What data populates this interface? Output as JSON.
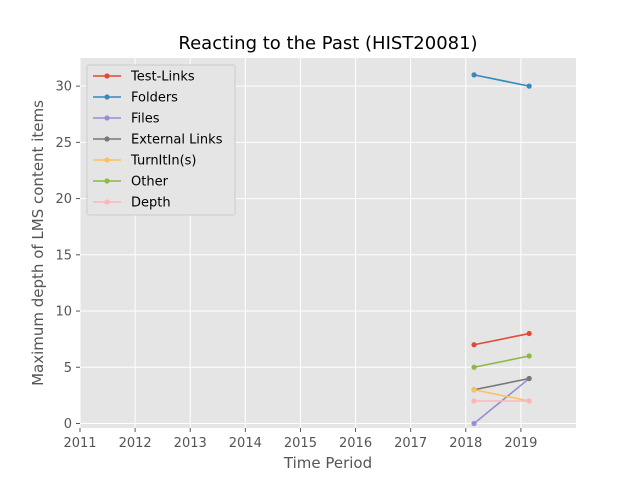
{
  "chart_data": {
    "type": "line",
    "title": "Reacting to the Past (HIST20081)",
    "xlabel": "Time Period",
    "ylabel": "Maximum depth of LMS content items",
    "xlim": [
      2011,
      2020
    ],
    "ylim": [
      -0.4,
      32.5
    ],
    "xticks": [
      "2011",
      "2012",
      "2013",
      "2014",
      "2015",
      "2016",
      "2017",
      "2018",
      "2019"
    ],
    "yticks": [
      "0",
      "5",
      "10",
      "15",
      "20",
      "25",
      "30"
    ],
    "x": [
      2018.15,
      2019.15
    ],
    "grid": true,
    "legend_position": "top-left",
    "series": [
      {
        "name": "Test-Links",
        "color": "#E24A33",
        "values": [
          7,
          8
        ]
      },
      {
        "name": "Folders",
        "color": "#348ABD",
        "values": [
          31,
          30
        ]
      },
      {
        "name": "Files",
        "color": "#988ED5",
        "values": [
          0,
          4
        ]
      },
      {
        "name": "External Links",
        "color": "#777777",
        "values": [
          3,
          4
        ]
      },
      {
        "name": "TurnItIn(s)",
        "color": "#FBC15E",
        "values": [
          3,
          2
        ]
      },
      {
        "name": "Other",
        "color": "#8EBA42",
        "values": [
          5,
          6
        ]
      },
      {
        "name": "Depth",
        "color": "#FFB5B8",
        "values": [
          2,
          2
        ]
      }
    ]
  }
}
